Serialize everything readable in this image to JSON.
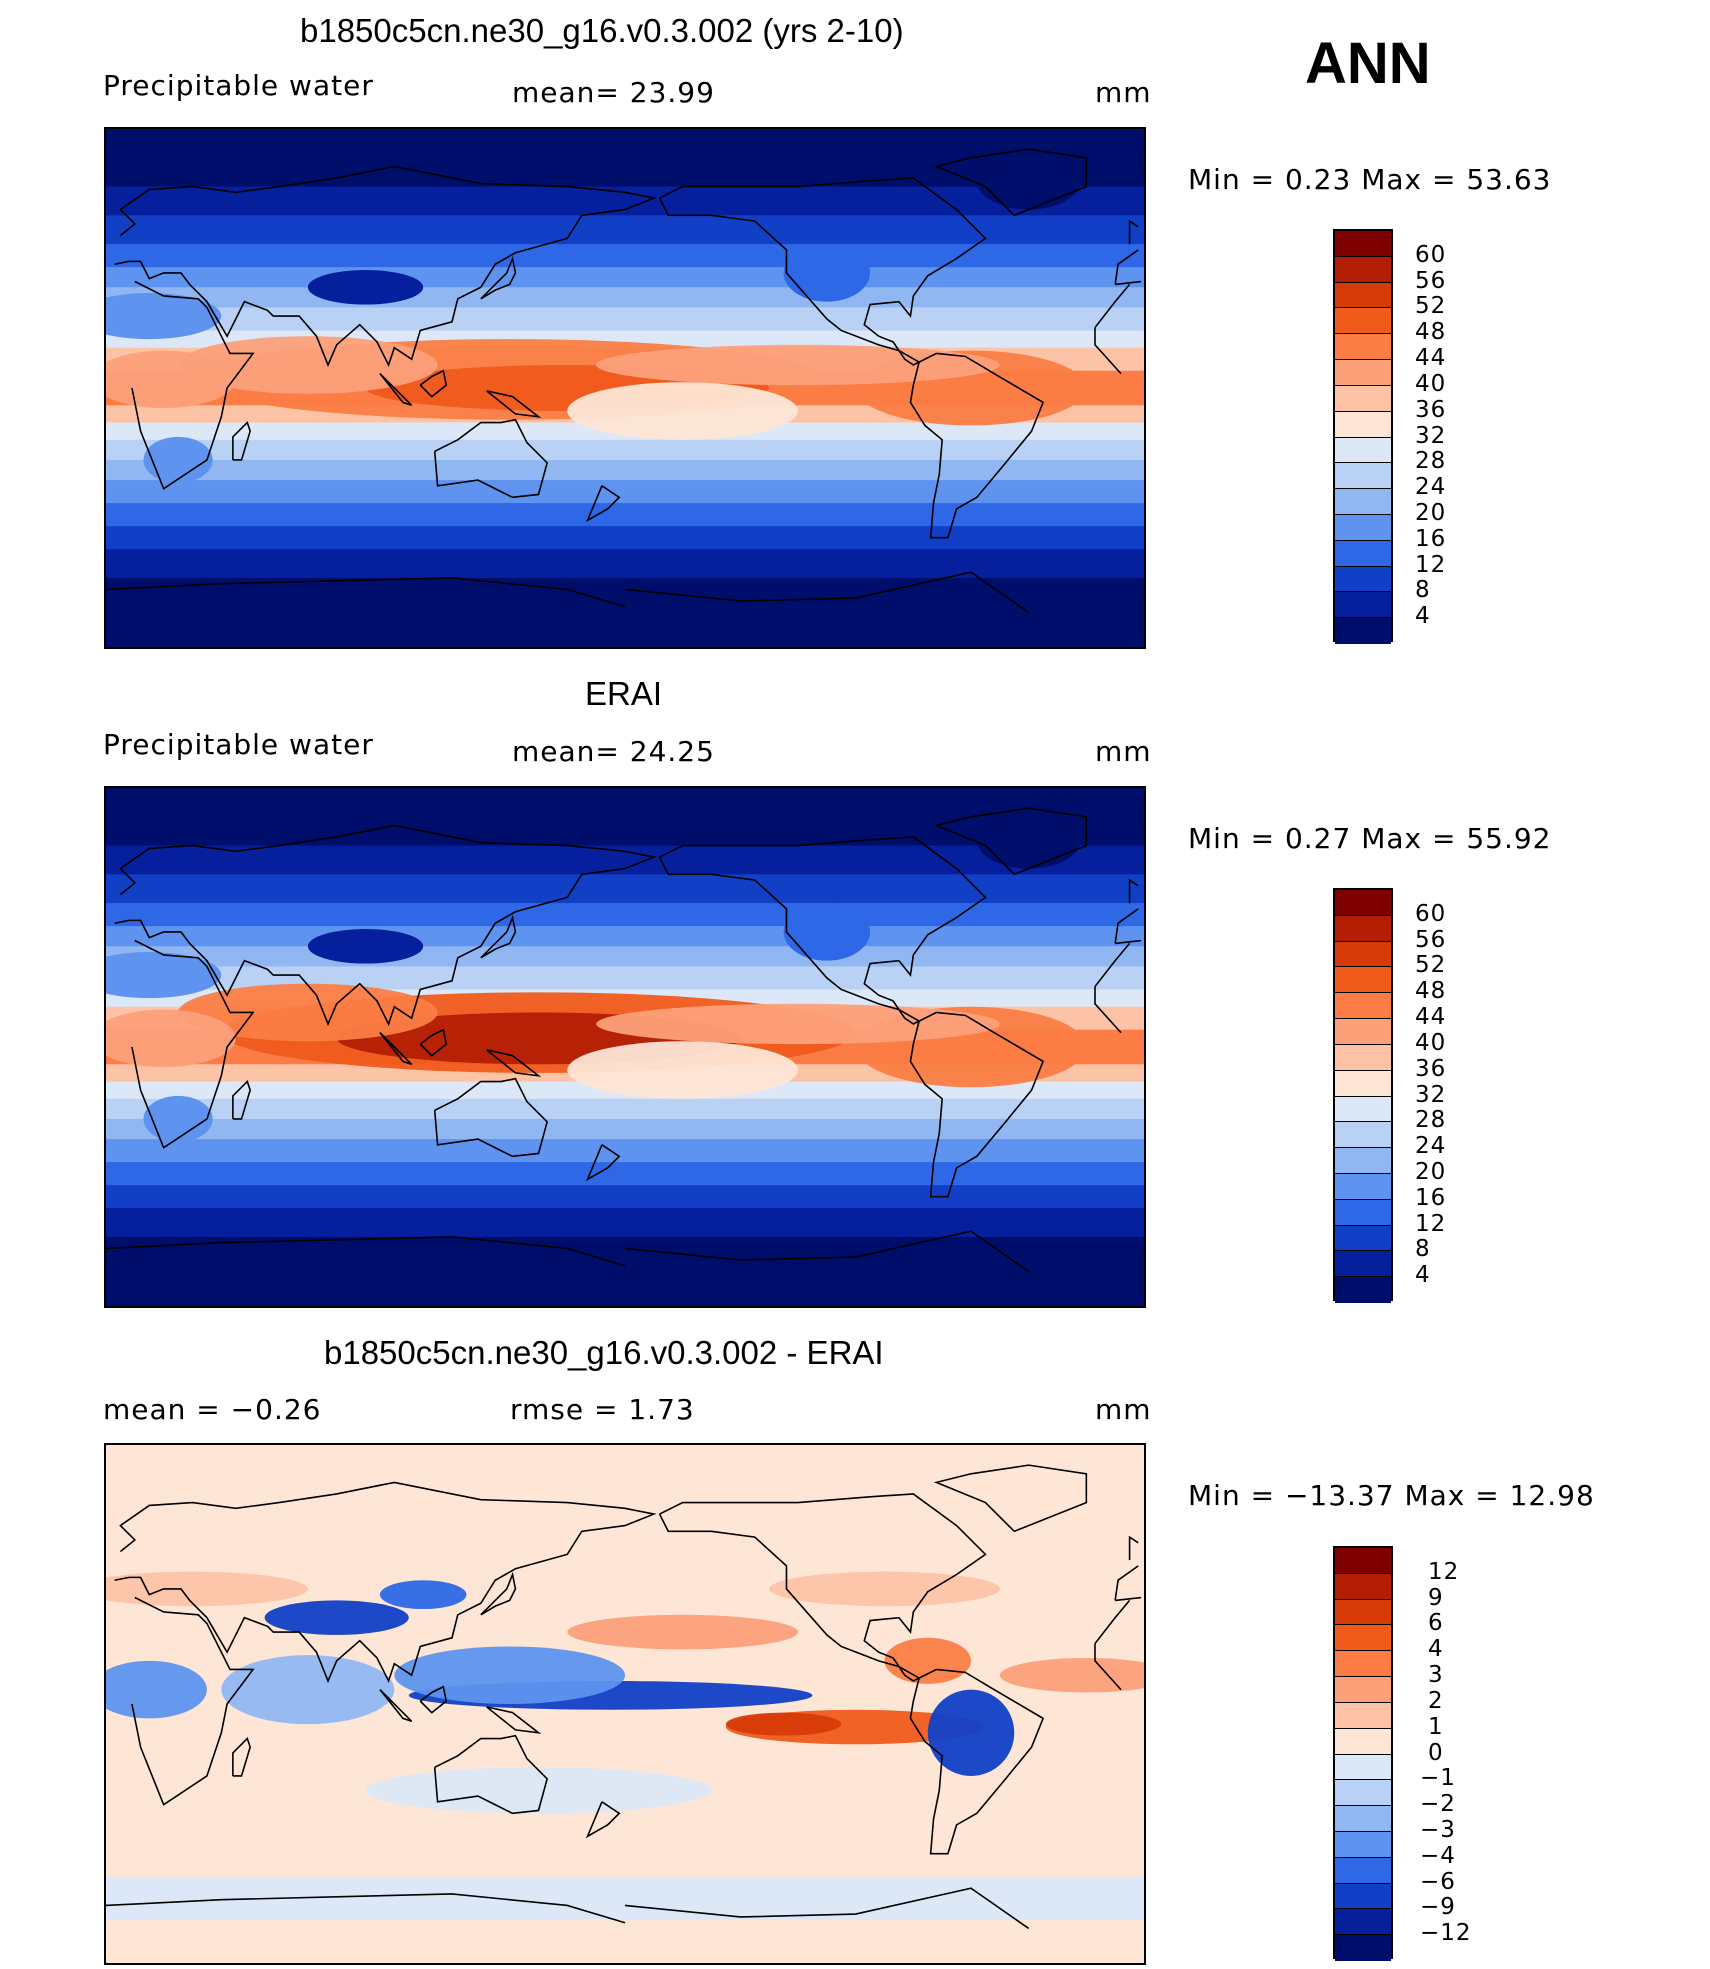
{
  "season": "ANN",
  "panels": [
    {
      "title": "b1850c5cn.ne30_g16.v0.3.002 (yrs 2-10)",
      "left_label": "Precipitable  water",
      "center_label": "mean=   23.99",
      "units": "mm",
      "minmax": "Min  =    0.23  Max  =    53.63",
      "colorbar_labels": [
        "60",
        "56",
        "52",
        "48",
        "44",
        "40",
        "36",
        "32",
        "28",
        "24",
        "20",
        "16",
        "12",
        "8",
        "4"
      ],
      "colorbar_colors": [
        "#7f0000",
        "#b31d04",
        "#d63a07",
        "#f05b1c",
        "#fb7d45",
        "#fca07a",
        "#fdc3a6",
        "#fde6d6",
        "#dce8f7",
        "#b9d1f5",
        "#91b7f3",
        "#5e93ef",
        "#2e68e6",
        "#1140c7",
        "#061f9c",
        "#000e6b"
      ],
      "field": "model"
    },
    {
      "title": "ERAI",
      "left_label": "Precipitable  water",
      "center_label": "mean=   24.25",
      "units": "mm",
      "minmax": "Min  =    0.27  Max  =    55.92",
      "colorbar_labels": [
        "60",
        "56",
        "52",
        "48",
        "44",
        "40",
        "36",
        "32",
        "28",
        "24",
        "20",
        "16",
        "12",
        "8",
        "4"
      ],
      "colorbar_colors": [
        "#7f0000",
        "#b31d04",
        "#d63a07",
        "#f05b1c",
        "#fb7d45",
        "#fca07a",
        "#fdc3a6",
        "#fde6d6",
        "#dce8f7",
        "#b9d1f5",
        "#91b7f3",
        "#5e93ef",
        "#2e68e6",
        "#1140c7",
        "#061f9c",
        "#000e6b"
      ],
      "field": "obs"
    },
    {
      "title": "b1850c5cn.ne30_g16.v0.3.002 - ERAI",
      "left_label": "mean  =    −0.26",
      "center_label": "rmse  =     1.73",
      "units": "mm",
      "minmax": "Min  = −13.37  Max  =    12.98",
      "colorbar_labels": [
        "12",
        "9",
        "6",
        "4",
        "3",
        "2",
        "1",
        "0",
        "−1",
        "−2",
        "−3",
        "−4",
        "−6",
        "−9",
        "−12"
      ],
      "colorbar_colors": [
        "#7f0000",
        "#b31d04",
        "#d63a07",
        "#f05b1c",
        "#fb7d45",
        "#fca07a",
        "#fdc3a6",
        "#fde6d6",
        "#dce8f7",
        "#b9d1f5",
        "#91b7f3",
        "#5e93ef",
        "#2e68e6",
        "#1140c7",
        "#061f9c",
        "#000e6b"
      ],
      "field": "diff"
    }
  ]
}
